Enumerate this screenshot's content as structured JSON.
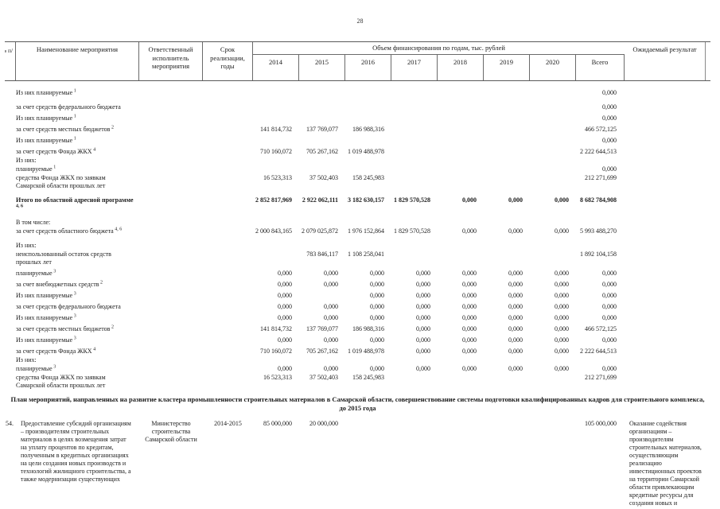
{
  "page_number": "28",
  "header": {
    "num": "№ п/п",
    "name": "Наименование мероприятия",
    "responsible": "Ответственный исполнитель мероприятия",
    "period": "Срок реализации, годы",
    "funding": "Объем финансирования по годам, тыс. рублей",
    "years": [
      "2014",
      "2015",
      "2016",
      "2017",
      "2018",
      "2019",
      "2020",
      "Всего"
    ],
    "result": "Ожидаемый результат"
  },
  "rows": [
    {
      "label": "Из них планируемые",
      "sup": "1",
      "sp": 2,
      "values": [
        "",
        "",
        "",
        "",
        "",
        "",
        "",
        "0,000"
      ]
    },
    {
      "label": "за счет средств федерального бюджета",
      "sp": 2,
      "values": [
        "",
        "",
        "",
        "",
        "",
        "",
        "",
        "0,000"
      ]
    },
    {
      "label": "Из них планируемые",
      "sup": "1",
      "sp": 1,
      "values": [
        "",
        "",
        "",
        "",
        "",
        "",
        "",
        "0,000"
      ]
    },
    {
      "label": "за счет средств местных бюджетов",
      "sup": "2",
      "sp": 1,
      "values": [
        "141 814,732",
        "137 769,077",
        "186 988,316",
        "",
        "",
        "",
        "",
        "466 572,125"
      ]
    },
    {
      "label": "Из них планируемые",
      "sup": "1",
      "sp": 1,
      "values": [
        "",
        "",
        "",
        "",
        "",
        "",
        "",
        "0,000"
      ]
    },
    {
      "label": "за счет средств Фонда ЖКХ",
      "sup": "4",
      "sp": 1,
      "values": [
        "710 160,072",
        "705 267,162",
        "1 019 488,978",
        "",
        "",
        "",
        "",
        "2 222 644,513"
      ]
    },
    {
      "label": "Из них:",
      "sp": 0,
      "values": [
        "",
        "",
        "",
        "",
        "",
        "",
        "",
        ""
      ]
    },
    {
      "label": "планируемые",
      "sup": "1",
      "sp": 0,
      "values": [
        "",
        "",
        "",
        "",
        "",
        "",
        "",
        "0,000"
      ]
    },
    {
      "label": "средства Фонда ЖКХ по заявкам Самарской области прошлых лет",
      "sp": 0,
      "values": [
        "16 523,313",
        "37 502,403",
        "158 245,983",
        "",
        "",
        "",
        "",
        "212 271,699"
      ]
    },
    {
      "label": "Итого по областной адресной программе",
      "sup": "4, 6",
      "bold": true,
      "sp": 2,
      "values": [
        "2 852 817,969",
        "2 922 062,111",
        "3 182 630,157",
        "1 829 570,528",
        "0,000",
        "0,000",
        "0,000",
        "8 682 784,908"
      ]
    },
    {
      "label": "В том числе:",
      "sp": 2,
      "values": [
        "",
        "",
        "",
        "",
        "",
        "",
        "",
        ""
      ]
    },
    {
      "label": "за счет средств областного бюджета",
      "sup": "4, 6",
      "sp": 0,
      "values": [
        "2 000 843,165",
        "2 079 025,872",
        "1 976 152,864",
        "1 829 570,528",
        "0,000",
        "0,000",
        "0,000",
        "5 993 488,270"
      ]
    },
    {
      "label": "Из них:",
      "sp": 2,
      "values": [
        "",
        "",
        "",
        "",
        "",
        "",
        "",
        ""
      ]
    },
    {
      "label": "неиспользованный остаток средств прошлых лет",
      "sp": 0,
      "values": [
        "",
        "783 846,117",
        "1 108 258,041",
        "",
        "",
        "",
        "",
        "1 892 104,158"
      ]
    },
    {
      "label": "планируемые",
      "sup": "3",
      "sp": 1,
      "values": [
        "0,000",
        "0,000",
        "0,000",
        "0,000",
        "0,000",
        "0,000",
        "0,000",
        "0,000"
      ]
    },
    {
      "label": "за счет внебюджетных средств",
      "sup": "2",
      "sp": 1,
      "values": [
        "0,000",
        "0,000",
        "0,000",
        "0,000",
        "0,000",
        "0,000",
        "0,000",
        "0,000"
      ]
    },
    {
      "label": "Из них планируемые",
      "sup": "3",
      "sp": 1,
      "values": [
        "0,000",
        "",
        "0,000",
        "0,000",
        "0,000",
        "0,000",
        "0,000",
        "0,000"
      ]
    },
    {
      "label": "за счет средств федерального бюджета",
      "sp": 1,
      "values": [
        "0,000",
        "0,000",
        "0,000",
        "0,000",
        "0,000",
        "0,000",
        "0,000",
        "0,000"
      ]
    },
    {
      "label": "Из них планируемые",
      "sup": "3",
      "sp": 1,
      "values": [
        "0,000",
        "0,000",
        "0,000",
        "0,000",
        "0,000",
        "0,000",
        "0,000",
        "0,000"
      ]
    },
    {
      "label": "за счет средств местных бюджетов",
      "sup": "2",
      "sp": 1,
      "values": [
        "141 814,732",
        "137 769,077",
        "186 988,316",
        "0,000",
        "0,000",
        "0,000",
        "0,000",
        "466 572,125"
      ]
    },
    {
      "label": "Из них планируемые",
      "sup": "3",
      "sp": 1,
      "values": [
        "0,000",
        "0,000",
        "0,000",
        "0,000",
        "0,000",
        "0,000",
        "0,000",
        "0,000"
      ]
    },
    {
      "label": "за счет средств Фонда ЖКХ",
      "sup": "4",
      "sp": 1,
      "values": [
        "710 160,072",
        "705 267,162",
        "1 019 488,978",
        "0,000",
        "0,000",
        "0,000",
        "0,000",
        "2 222 644,513"
      ]
    },
    {
      "label": "Из них:",
      "sp": 0,
      "values": [
        "",
        "",
        "",
        "",
        "",
        "",
        "",
        ""
      ]
    },
    {
      "label": "планируемые",
      "sup": "3",
      "sp": 0,
      "values": [
        "0,000",
        "0,000",
        "0,000",
        "0,000",
        "0,000",
        "0,000",
        "0,000",
        "0,000"
      ]
    },
    {
      "label": "средства Фонда ЖКХ по заявкам Самарской области прошлых лет",
      "sp": 0,
      "values": [
        "16 523,313",
        "37 502,403",
        "158 245,983",
        "",
        "",
        "",
        "",
        "212 271,699"
      ]
    }
  ],
  "section_title_line1": "План мероприятий, направленных на развитие кластера промышленности строительных материалов в Самарской области, совершенствование системы подготовки квалифицированных кадров для строительного комплекса,",
  "section_title_line2": "до 2015 года",
  "measure": {
    "num": "54.",
    "name": "Предоставление субсидий организациям – производителям строительных материалов в целях возмещения затрат на уплату процентов по кредитам, полученным в кредитных организациях на цели создания новых производств и технологий жилищного строительства, а также модернизации существующих",
    "responsible": "Министерство строительства Самарской области",
    "period": "2014-2015",
    "values": [
      "85 000,000",
      "20 000,000",
      "",
      "",
      "",
      "",
      "",
      "105 000,000"
    ],
    "result": "Оказание содействия организациям – производителям строительных материалов, осуществляющим реализацию инвестиционных проектов на территории Самарской области привлекающим кредитные ресурсы для создания новых и модернизации существующих"
  }
}
